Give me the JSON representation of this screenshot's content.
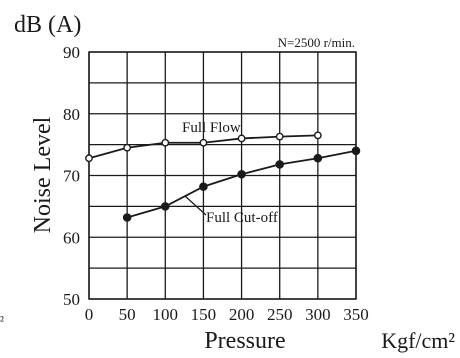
{
  "chart_data": {
    "type": "line",
    "unit_label": "dB (A)",
    "annotation": "N=2500 r/min.",
    "ylabel": "Noise Level",
    "xlabel": "Pressure",
    "x_unit": "Kgf/cm²",
    "stray_text": "²",
    "xlim": [
      0,
      350
    ],
    "ylim": [
      50,
      90
    ],
    "x_ticks": [
      "0",
      "50",
      "100",
      "150",
      "200",
      "250",
      "300",
      "350"
    ],
    "y_ticks": [
      "50",
      "60",
      "70",
      "80",
      "90"
    ],
    "grid": true,
    "series": [
      {
        "name": "Full Flow",
        "marker": "open-circle",
        "x": [
          0,
          50,
          100,
          150,
          200,
          250,
          300
        ],
        "y": [
          72.8,
          74.5,
          75.3,
          75.3,
          76.0,
          76.3,
          76.5
        ]
      },
      {
        "name": "Full Cut-off",
        "marker": "filled-circle",
        "x": [
          50,
          100,
          150,
          200,
          250,
          300,
          350
        ],
        "y": [
          63.2,
          65.0,
          68.2,
          70.2,
          71.8,
          72.8,
          74.0
        ]
      }
    ]
  }
}
